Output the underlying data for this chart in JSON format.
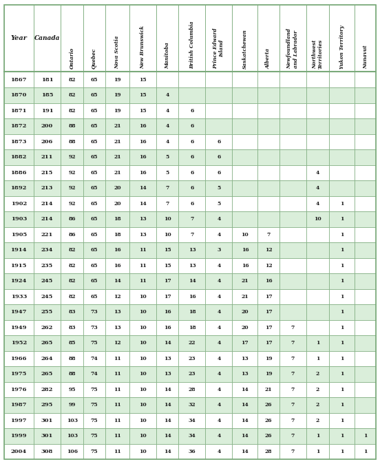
{
  "columns": [
    "Year",
    "Canada",
    "Ontario",
    "Quebec",
    "Nova Scotia",
    "New Brunswick",
    "Manitoba",
    "British Columbia",
    "Prince Edward Island",
    "Saskatchewan",
    "Alberta",
    "Newfoundland and Labrador",
    "Northwest Territories",
    "Yukon Territory",
    "Nunavut"
  ],
  "col_headers_rotated": [
    "Ontario",
    "Quebec",
    "Nova Scotia",
    "New Brunswick",
    "Manitoba",
    "British Columbia",
    "Prince Edward\nIsland",
    "Saskatchewan",
    "Alberta",
    "Newfoundland\nand Labrador",
    "Northwest\nTerritories",
    "Yukon Territory",
    "Nunavut"
  ],
  "rows": [
    [
      "1867",
      "181",
      "82",
      "65",
      "19",
      "15",
      "",
      "",
      "",
      "",
      "",
      "",
      "",
      "",
      ""
    ],
    [
      "1870",
      "185",
      "82",
      "65",
      "19",
      "15",
      "4",
      "",
      "",
      "",
      "",
      "",
      "",
      "",
      ""
    ],
    [
      "1871",
      "191",
      "82",
      "65",
      "19",
      "15",
      "4",
      "6",
      "",
      "",
      "",
      "",
      "",
      "",
      ""
    ],
    [
      "1872",
      "200",
      "88",
      "65",
      "21",
      "16",
      "4",
      "6",
      "",
      "",
      "",
      "",
      "",
      "",
      ""
    ],
    [
      "1873",
      "206",
      "88",
      "65",
      "21",
      "16",
      "4",
      "6",
      "6",
      "",
      "",
      "",
      "",
      "",
      ""
    ],
    [
      "1882",
      "211",
      "92",
      "65",
      "21",
      "16",
      "5",
      "6",
      "6",
      "",
      "",
      "",
      "",
      "",
      ""
    ],
    [
      "1886",
      "215",
      "92",
      "65",
      "21",
      "16",
      "5",
      "6",
      "6",
      "",
      "",
      "",
      "4",
      "",
      ""
    ],
    [
      "1892",
      "213",
      "92",
      "65",
      "20",
      "14",
      "7",
      "6",
      "5",
      "",
      "",
      "",
      "4",
      "",
      ""
    ],
    [
      "1902",
      "214",
      "92",
      "65",
      "20",
      "14",
      "7",
      "6",
      "5",
      "",
      "",
      "",
      "4",
      "1",
      ""
    ],
    [
      "1903",
      "214",
      "86",
      "65",
      "18",
      "13",
      "10",
      "7",
      "4",
      "",
      "",
      "",
      "10",
      "1",
      ""
    ],
    [
      "1905",
      "221",
      "86",
      "65",
      "18",
      "13",
      "10",
      "7",
      "4",
      "10",
      "7",
      "",
      "",
      "1",
      ""
    ],
    [
      "1914",
      "234",
      "82",
      "65",
      "16",
      "11",
      "15",
      "13",
      "3",
      "16",
      "12",
      "",
      "",
      "1",
      ""
    ],
    [
      "1915",
      "235",
      "82",
      "65",
      "16",
      "11",
      "15",
      "13",
      "4",
      "16",
      "12",
      "",
      "",
      "1",
      ""
    ],
    [
      "1924",
      "245",
      "82",
      "65",
      "14",
      "11",
      "17",
      "14",
      "4",
      "21",
      "16",
      "",
      "",
      "1",
      ""
    ],
    [
      "1933",
      "245",
      "82",
      "65",
      "12",
      "10",
      "17",
      "16",
      "4",
      "21",
      "17",
      "",
      "",
      "1",
      ""
    ],
    [
      "1947",
      "255",
      "83",
      "73",
      "13",
      "10",
      "16",
      "18",
      "4",
      "20",
      "17",
      "",
      "",
      "1",
      ""
    ],
    [
      "1949",
      "262",
      "83",
      "73",
      "13",
      "10",
      "16",
      "18",
      "4",
      "20",
      "17",
      "7",
      "",
      "1",
      ""
    ],
    [
      "1952",
      "265",
      "85",
      "75",
      "12",
      "10",
      "14",
      "22",
      "4",
      "17",
      "17",
      "7",
      "1",
      "1",
      ""
    ],
    [
      "1966",
      "264",
      "88",
      "74",
      "11",
      "10",
      "13",
      "23",
      "4",
      "13",
      "19",
      "7",
      "1",
      "1",
      ""
    ],
    [
      "1975",
      "265",
      "88",
      "74",
      "11",
      "10",
      "13",
      "23",
      "4",
      "13",
      "19",
      "7",
      "2",
      "1",
      ""
    ],
    [
      "1976",
      "282",
      "95",
      "75",
      "11",
      "10",
      "14",
      "28",
      "4",
      "14",
      "21",
      "7",
      "2",
      "1",
      ""
    ],
    [
      "1987",
      "295",
      "99",
      "75",
      "11",
      "10",
      "14",
      "32",
      "4",
      "14",
      "26",
      "7",
      "2",
      "1",
      ""
    ],
    [
      "1997",
      "301",
      "103",
      "75",
      "11",
      "10",
      "14",
      "34",
      "4",
      "14",
      "26",
      "7",
      "2",
      "1",
      ""
    ],
    [
      "1999",
      "301",
      "103",
      "75",
      "11",
      "10",
      "14",
      "34",
      "4",
      "14",
      "26",
      "7",
      "1",
      "1",
      "1"
    ],
    [
      "2004",
      "308",
      "106",
      "75",
      "11",
      "10",
      "14",
      "36",
      "4",
      "14",
      "28",
      "7",
      "1",
      "1",
      "1"
    ]
  ],
  "row_colors": [
    "#ffffff",
    "#daeeda",
    "#ffffff",
    "#daeeda",
    "#ffffff",
    "#daeeda",
    "#ffffff",
    "#daeeda",
    "#ffffff",
    "#daeeda",
    "#ffffff",
    "#daeeda",
    "#ffffff",
    "#daeeda",
    "#ffffff",
    "#daeeda",
    "#ffffff",
    "#daeeda",
    "#ffffff",
    "#daeeda",
    "#ffffff",
    "#daeeda",
    "#ffffff",
    "#daeeda",
    "#ffffff"
  ],
  "border_color": "#7aaa7a",
  "text_color": "#1a1a1a",
  "header_text_color": "#1a1a1a",
  "fig_width": 5.52,
  "fig_height": 6.74
}
